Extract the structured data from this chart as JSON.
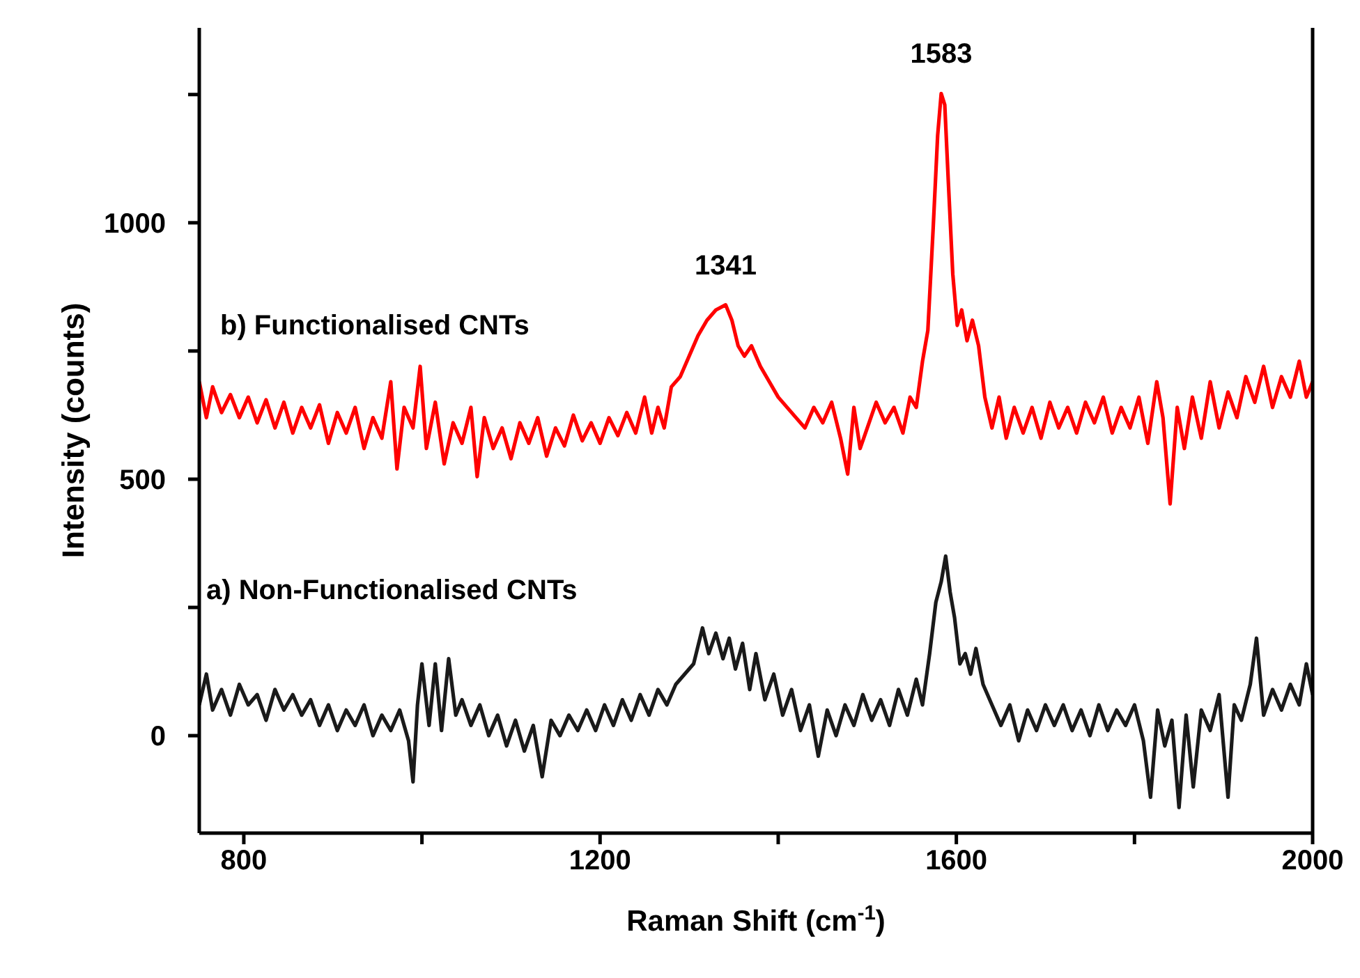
{
  "chart_data": {
    "type": "line",
    "xlabel": "Raman Shift (cm$^{-1}$)",
    "ylabel": "Intensity (counts)",
    "xlim": [
      750,
      2000
    ],
    "ylim": [
      -190,
      1380
    ],
    "xticks": [
      800,
      {
        "value": 1000,
        "label": null
      },
      1200,
      {
        "value": 1400,
        "label": null
      },
      1600,
      {
        "value": 1800,
        "label": null
      },
      2000
    ],
    "yticks": [
      0,
      {
        "value": 250,
        "label": null
      },
      500,
      {
        "value": 750,
        "label": null
      },
      1000,
      {
        "value": 1250,
        "label": null
      }
    ],
    "grid": false,
    "legend": false,
    "annotations": [
      {
        "text": "1341",
        "x": 1341,
        "y": 840
      },
      {
        "text": "1583",
        "x": 1583,
        "y": 1252
      }
    ],
    "series": [
      {
        "name": "b) Functionalised CNTs",
        "color": "#ff0000",
        "x": [
          750,
          758,
          765,
          775,
          785,
          795,
          805,
          815,
          825,
          835,
          845,
          855,
          865,
          875,
          885,
          895,
          905,
          915,
          925,
          935,
          945,
          955,
          965,
          972,
          980,
          990,
          998,
          1005,
          1015,
          1025,
          1035,
          1045,
          1055,
          1062,
          1070,
          1080,
          1090,
          1100,
          1110,
          1120,
          1130,
          1140,
          1150,
          1160,
          1170,
          1180,
          1190,
          1200,
          1210,
          1220,
          1230,
          1240,
          1250,
          1258,
          1265,
          1272,
          1280,
          1290,
          1300,
          1310,
          1320,
          1330,
          1341,
          1348,
          1355,
          1362,
          1370,
          1380,
          1390,
          1400,
          1410,
          1420,
          1430,
          1440,
          1450,
          1460,
          1470,
          1478,
          1485,
          1492,
          1500,
          1510,
          1520,
          1530,
          1540,
          1548,
          1555,
          1562,
          1568,
          1574,
          1579,
          1583,
          1587,
          1591,
          1596,
          1601,
          1606,
          1612,
          1618,
          1625,
          1632,
          1640,
          1648,
          1656,
          1665,
          1675,
          1685,
          1695,
          1705,
          1715,
          1725,
          1735,
          1745,
          1755,
          1765,
          1775,
          1785,
          1795,
          1805,
          1815,
          1825,
          1832,
          1840,
          1848,
          1856,
          1865,
          1875,
          1885,
          1895,
          1905,
          1915,
          1925,
          1935,
          1945,
          1955,
          1965,
          1975,
          1985,
          1993,
          2000
        ],
        "values": [
          690,
          620,
          680,
          630,
          665,
          620,
          660,
          610,
          655,
          600,
          650,
          590,
          640,
          600,
          645,
          570,
          630,
          590,
          640,
          560,
          620,
          580,
          690,
          520,
          640,
          600,
          720,
          560,
          650,
          530,
          610,
          570,
          640,
          505,
          620,
          560,
          600,
          540,
          610,
          570,
          620,
          545,
          600,
          565,
          625,
          575,
          610,
          570,
          620,
          585,
          630,
          590,
          660,
          590,
          640,
          600,
          680,
          700,
          740,
          780,
          810,
          830,
          840,
          810,
          760,
          740,
          760,
          720,
          690,
          660,
          640,
          620,
          600,
          640,
          610,
          650,
          580,
          510,
          640,
          560,
          600,
          650,
          610,
          640,
          590,
          660,
          640,
          730,
          790,
          990,
          1170,
          1252,
          1230,
          1080,
          900,
          800,
          830,
          770,
          810,
          760,
          660,
          600,
          660,
          580,
          640,
          590,
          640,
          580,
          650,
          600,
          640,
          590,
          650,
          610,
          660,
          590,
          640,
          600,
          660,
          570,
          690,
          620,
          452,
          640,
          560,
          660,
          580,
          690,
          600,
          670,
          620,
          700,
          650,
          720,
          640,
          700,
          660,
          730,
          660,
          690
        ]
      },
      {
        "name": "a) Non-Functionalised CNTs",
        "color": "#1a1a1a",
        "x": [
          750,
          758,
          765,
          775,
          785,
          795,
          805,
          815,
          825,
          835,
          845,
          855,
          865,
          875,
          885,
          895,
          905,
          915,
          925,
          935,
          945,
          955,
          965,
          975,
          985,
          990,
          995,
          1000,
          1008,
          1015,
          1022,
          1030,
          1038,
          1045,
          1055,
          1065,
          1075,
          1085,
          1095,
          1105,
          1115,
          1125,
          1135,
          1145,
          1155,
          1165,
          1175,
          1185,
          1195,
          1205,
          1215,
          1225,
          1235,
          1245,
          1255,
          1265,
          1275,
          1285,
          1295,
          1305,
          1315,
          1322,
          1330,
          1338,
          1345,
          1352,
          1360,
          1368,
          1375,
          1385,
          1395,
          1405,
          1415,
          1425,
          1435,
          1445,
          1455,
          1465,
          1475,
          1485,
          1495,
          1505,
          1515,
          1525,
          1535,
          1545,
          1555,
          1562,
          1570,
          1577,
          1583,
          1588,
          1593,
          1598,
          1604,
          1610,
          1616,
          1622,
          1630,
          1640,
          1650,
          1660,
          1670,
          1680,
          1690,
          1700,
          1710,
          1720,
          1730,
          1740,
          1750,
          1760,
          1770,
          1780,
          1790,
          1800,
          1810,
          1818,
          1826,
          1834,
          1842,
          1850,
          1858,
          1866,
          1875,
          1885,
          1895,
          1905,
          1912,
          1920,
          1930,
          1937,
          1945,
          1955,
          1965,
          1975,
          1985,
          1993,
          2000
        ],
        "values": [
          60,
          120,
          50,
          90,
          40,
          100,
          60,
          80,
          30,
          90,
          50,
          80,
          40,
          70,
          20,
          60,
          10,
          50,
          20,
          60,
          0,
          40,
          10,
          50,
          -10,
          -90,
          60,
          140,
          20,
          140,
          10,
          150,
          40,
          70,
          20,
          60,
          0,
          40,
          -20,
          30,
          -30,
          20,
          -80,
          30,
          0,
          40,
          10,
          50,
          10,
          60,
          20,
          70,
          30,
          80,
          40,
          90,
          60,
          100,
          120,
          140,
          210,
          160,
          200,
          150,
          190,
          130,
          180,
          90,
          160,
          70,
          120,
          40,
          90,
          10,
          60,
          -40,
          50,
          0,
          60,
          20,
          80,
          30,
          70,
          20,
          90,
          40,
          110,
          60,
          160,
          260,
          300,
          350,
          280,
          230,
          140,
          160,
          120,
          170,
          100,
          60,
          20,
          60,
          -10,
          50,
          10,
          60,
          20,
          60,
          10,
          50,
          0,
          60,
          10,
          50,
          20,
          60,
          -10,
          -120,
          50,
          -20,
          30,
          -140,
          40,
          -100,
          50,
          10,
          80,
          -120,
          60,
          30,
          100,
          190,
          40,
          90,
          50,
          100,
          60,
          140,
          80
        ]
      }
    ]
  }
}
